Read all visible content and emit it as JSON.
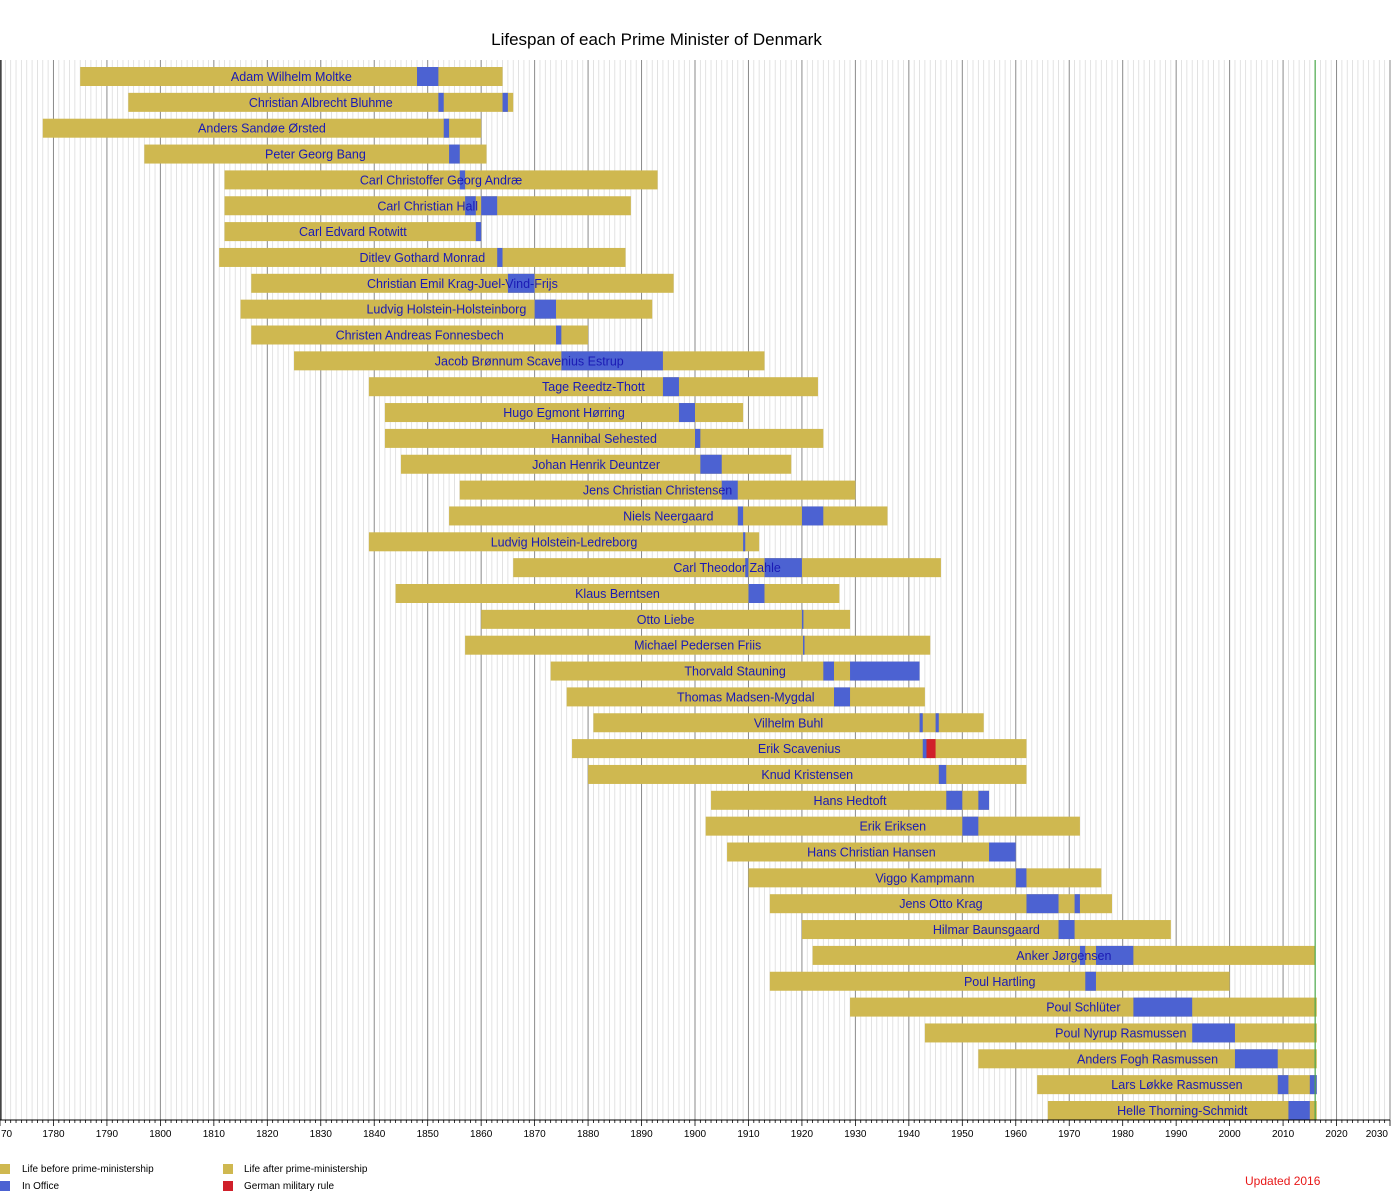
{
  "title": "Lifespan of each Prime Minister of Denmark",
  "updated": "Updated 2016",
  "legend": [
    {
      "label": "Life before prime-ministership",
      "color": "#cfb850"
    },
    {
      "label": "In Office",
      "color": "#4c62d2"
    },
    {
      "label": "Life after prime-ministership",
      "color": "#cfb850"
    },
    {
      "label": "German military rule",
      "color": "#d0202a"
    }
  ],
  "chart_data": {
    "type": "bar",
    "orientation": "horizontal-timeline",
    "xlim": [
      1770,
      2030
    ],
    "x_ticks": [
      1780,
      1790,
      1800,
      1810,
      1820,
      1830,
      1840,
      1850,
      1860,
      1870,
      1880,
      1890,
      1900,
      1910,
      1920,
      1930,
      1940,
      1950,
      1960,
      1970,
      1980,
      1990,
      2000,
      2010,
      2020,
      2030
    ],
    "x_tick_left_partial": "70",
    "grid": true,
    "current_year_line": 2016,
    "colors": {
      "life": "#cfb850",
      "office": "#4c62d2",
      "german_rule": "#d0202a",
      "label": "#1a1ab5",
      "current_line": "#4aa84a"
    },
    "series": [
      {
        "name": "Adam Wilhelm Moltke",
        "born": 1785,
        "died": 1864,
        "terms": [
          [
            1848,
            1852
          ]
        ]
      },
      {
        "name": "Christian Albrecht Bluhme",
        "born": 1794,
        "died": 1866,
        "terms": [
          [
            1852,
            1853
          ],
          [
            1864,
            1865
          ]
        ]
      },
      {
        "name": "Anders Sandøe Ørsted",
        "born": 1778,
        "died": 1860,
        "terms": [
          [
            1853,
            1854
          ]
        ]
      },
      {
        "name": "Peter Georg Bang",
        "born": 1797,
        "died": 1861,
        "terms": [
          [
            1854,
            1856
          ]
        ]
      },
      {
        "name": "Carl Christoffer Georg Andræ",
        "born": 1812,
        "died": 1893,
        "terms": [
          [
            1856,
            1857
          ]
        ]
      },
      {
        "name": "Carl Christian Hall",
        "born": 1812,
        "died": 1888,
        "terms": [
          [
            1857,
            1859
          ],
          [
            1860,
            1863
          ]
        ]
      },
      {
        "name": "Carl Edvard Rotwitt",
        "born": 1812,
        "died": 1860,
        "terms": [
          [
            1859,
            1860
          ]
        ]
      },
      {
        "name": "Ditlev Gothard Monrad",
        "born": 1811,
        "died": 1887,
        "terms": [
          [
            1863,
            1864
          ]
        ]
      },
      {
        "name": "Christian Emil Krag-Juel-Vind-Frijs",
        "born": 1817,
        "died": 1896,
        "terms": [
          [
            1865,
            1870
          ]
        ]
      },
      {
        "name": "Ludvig Holstein-Holsteinborg",
        "born": 1815,
        "died": 1892,
        "terms": [
          [
            1870,
            1874
          ]
        ]
      },
      {
        "name": "Christen Andreas Fonnesbech",
        "born": 1817,
        "died": 1880,
        "terms": [
          [
            1874,
            1875
          ]
        ]
      },
      {
        "name": "Jacob Brønnum Scavenius Estrup",
        "born": 1825,
        "died": 1913,
        "terms": [
          [
            1875,
            1894
          ]
        ]
      },
      {
        "name": "Tage Reedtz-Thott",
        "born": 1839,
        "died": 1923,
        "terms": [
          [
            1894,
            1897
          ]
        ]
      },
      {
        "name": "Hugo Egmont Hørring",
        "born": 1842,
        "died": 1909,
        "terms": [
          [
            1897,
            1900
          ]
        ]
      },
      {
        "name": "Hannibal Sehested",
        "born": 1842,
        "died": 1924,
        "terms": [
          [
            1900,
            1901
          ]
        ]
      },
      {
        "name": "Johan Henrik Deuntzer",
        "born": 1845,
        "died": 1918,
        "terms": [
          [
            1901,
            1905
          ]
        ]
      },
      {
        "name": "Jens Christian Christensen",
        "born": 1856,
        "died": 1930,
        "terms": [
          [
            1905,
            1908
          ]
        ]
      },
      {
        "name": "Niels Neergaard",
        "born": 1854,
        "died": 1936,
        "terms": [
          [
            1908,
            1909
          ],
          [
            1920,
            1924
          ]
        ]
      },
      {
        "name": "Ludvig Holstein-Ledreborg",
        "born": 1839,
        "died": 1912,
        "terms": [
          [
            1909,
            1909.4
          ]
        ]
      },
      {
        "name": "Carl Theodor Zahle",
        "born": 1866,
        "died": 1946,
        "terms": [
          [
            1909.4,
            1910
          ],
          [
            1913,
            1920
          ]
        ]
      },
      {
        "name": "Klaus Berntsen",
        "born": 1844,
        "died": 1927,
        "terms": [
          [
            1910,
            1913
          ]
        ]
      },
      {
        "name": "Otto Liebe",
        "born": 1860,
        "died": 1929,
        "terms": [
          [
            1920,
            1920.2
          ]
        ]
      },
      {
        "name": "Michael Pedersen Friis",
        "born": 1857,
        "died": 1944,
        "terms": [
          [
            1920.2,
            1920.4
          ]
        ]
      },
      {
        "name": "Thorvald Stauning",
        "born": 1873,
        "died": 1942,
        "terms": [
          [
            1924,
            1926
          ],
          [
            1929,
            1942
          ]
        ]
      },
      {
        "name": "Thomas Madsen-Mygdal",
        "born": 1876,
        "died": 1943,
        "terms": [
          [
            1926,
            1929
          ]
        ]
      },
      {
        "name": "Vilhelm Buhl",
        "born": 1881,
        "died": 1954,
        "terms": [
          [
            1942,
            1942.6
          ],
          [
            1945,
            1945.6
          ]
        ]
      },
      {
        "name": "Erik Scavenius",
        "born": 1877,
        "died": 1962,
        "terms": [
          [
            1942.6,
            1943.3
          ]
        ],
        "german_rule": [
          1943.3,
          1945
        ]
      },
      {
        "name": "Knud Kristensen",
        "born": 1880,
        "died": 1962,
        "terms": [
          [
            1945.6,
            1947
          ]
        ]
      },
      {
        "name": "Hans Hedtoft",
        "born": 1903,
        "died": 1955,
        "terms": [
          [
            1947,
            1950
          ],
          [
            1953,
            1955
          ]
        ]
      },
      {
        "name": "Erik Eriksen",
        "born": 1902,
        "died": 1972,
        "terms": [
          [
            1950,
            1953
          ]
        ]
      },
      {
        "name": "Hans Christian Hansen",
        "born": 1906,
        "died": 1960,
        "terms": [
          [
            1955,
            1960
          ]
        ]
      },
      {
        "name": "Viggo Kampmann",
        "born": 1910,
        "died": 1976,
        "terms": [
          [
            1960,
            1962
          ]
        ]
      },
      {
        "name": "Jens Otto Krag",
        "born": 1914,
        "died": 1978,
        "terms": [
          [
            1962,
            1968
          ],
          [
            1971,
            1972
          ]
        ]
      },
      {
        "name": "Hilmar Baunsgaard",
        "born": 1920,
        "died": 1989,
        "terms": [
          [
            1968,
            1971
          ]
        ]
      },
      {
        "name": "Anker Jørgensen",
        "born": 1922,
        "died": 2016,
        "terms": [
          [
            1972,
            1973
          ],
          [
            1975,
            1982
          ]
        ]
      },
      {
        "name": "Poul Hartling",
        "born": 1914,
        "died": 2000,
        "terms": [
          [
            1973,
            1975
          ]
        ]
      },
      {
        "name": "Poul Schlüter",
        "born": 1929,
        "died": 2016.3,
        "terms": [
          [
            1982,
            1993
          ]
        ]
      },
      {
        "name": "Poul Nyrup Rasmussen",
        "born": 1943,
        "died": 2016.3,
        "terms": [
          [
            1993,
            2001
          ]
        ]
      },
      {
        "name": "Anders Fogh Rasmussen",
        "born": 1953,
        "died": 2016.3,
        "terms": [
          [
            2001,
            2009
          ]
        ]
      },
      {
        "name": "Lars Løkke Rasmussen",
        "born": 1964,
        "died": 2016.3,
        "terms": [
          [
            2009,
            2011
          ],
          [
            2015,
            2016.3
          ]
        ]
      },
      {
        "name": "Helle Thorning-Schmidt",
        "born": 1966,
        "died": 2016.3,
        "terms": [
          [
            2011,
            2015
          ]
        ]
      }
    ]
  }
}
